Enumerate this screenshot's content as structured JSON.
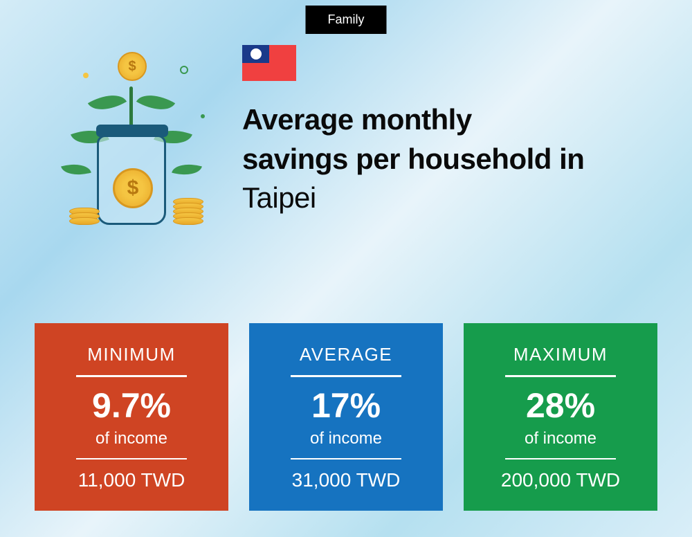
{
  "badge": {
    "label": "Family"
  },
  "title": {
    "line1": "Average monthly",
    "line2": "savings per household in",
    "city": "Taipei"
  },
  "flag": {
    "name": "taiwan-flag",
    "bg_color": "#f04040",
    "canton_color": "#1a3a8a"
  },
  "cards": [
    {
      "label": "MINIMUM",
      "percent": "9.7%",
      "subtext": "of income",
      "amount": "11,000 TWD",
      "bg_color": "#cf4423"
    },
    {
      "label": "AVERAGE",
      "percent": "17%",
      "subtext": "of income",
      "amount": "31,000 TWD",
      "bg_color": "#1673c0"
    },
    {
      "label": "MAXIMUM",
      "percent": "28%",
      "subtext": "of income",
      "amount": "200,000 TWD",
      "bg_color": "#169c4c"
    }
  ],
  "illustration": {
    "coin_symbol": "$",
    "coin_color": "#f5c542",
    "leaf_color": "#3a9850",
    "jar_border": "#1a5a7a"
  }
}
